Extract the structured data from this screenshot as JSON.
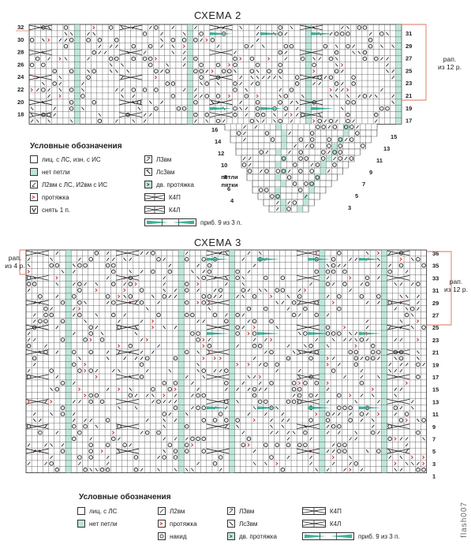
{
  "scheme2": {
    "title": "СХЕМА 2",
    "rows_left": [
      "32",
      "30",
      "28",
      "26",
      "24",
      "22",
      "20",
      "18",
      "16",
      "14",
      "12",
      "10",
      "8",
      "6",
      "4"
    ],
    "rows_right": [
      "31",
      "29",
      "27",
      "25",
      "23",
      "21",
      "19",
      "17",
      "15",
      "13",
      "11",
      "9",
      "7",
      "5",
      "3"
    ],
    "repeat_label": "рап.\nиз 12 р.",
    "loops_label": "петли\nпятки",
    "legend": {
      "title": "Условные обозначения",
      "items": [
        {
          "key": "knit",
          "label": "лиц. с ЛС, изн. с ИС"
        },
        {
          "key": "nostitch",
          "label": "нет петли"
        },
        {
          "key": "l2tog",
          "label": "Л2вм с ЛС, И2вм с ИС"
        },
        {
          "key": "pull",
          "label": "протяжка"
        },
        {
          "key": "slip",
          "label": "снять 1 п."
        },
        {
          "key": "l3tog",
          "label": "Л3вм"
        },
        {
          "key": "lc3tog",
          "label": "Лс3вм"
        },
        {
          "key": "dpull",
          "label": "дв. протяжка"
        },
        {
          "key": "c4r",
          "label": "К4П"
        },
        {
          "key": "c4l",
          "label": "К4Л"
        },
        {
          "key": "inc9",
          "label": "приб. 9 из 3 п."
        }
      ]
    }
  },
  "scheme3": {
    "title": "СХЕМА 3",
    "rows_right": [
      "36",
      "35",
      "33",
      "31",
      "29",
      "27",
      "25",
      "23",
      "21",
      "19",
      "17",
      "15",
      "13",
      "11",
      "9",
      "7",
      "5",
      "3",
      "1"
    ],
    "repeat_left_label": "рап.\nиз 4 р.",
    "repeat_right_label": "рап.\nиз 12 р.",
    "legend": {
      "title": "Условные обозначения",
      "items": [
        {
          "key": "knit",
          "label": "лиц. с ЛС"
        },
        {
          "key": "nostitch",
          "label": "нет петли"
        },
        {
          "key": "yo",
          "label": "накид"
        },
        {
          "key": "l2tog",
          "label": "Л2вм"
        },
        {
          "key": "pull",
          "label": "протяжка"
        },
        {
          "key": "l3tog",
          "label": "Л3вм"
        },
        {
          "key": "lc3tog",
          "label": "Лс3вм"
        },
        {
          "key": "dpull",
          "label": "дв. протяжка"
        },
        {
          "key": "c4r",
          "label": "К4П"
        },
        {
          "key": "c4l",
          "label": "К4Л"
        },
        {
          "key": "inc9",
          "label": "приб. 9 из 3 п."
        }
      ]
    }
  },
  "watermark": "flash007",
  "colors": {
    "grid": "#333333",
    "nostitch": "#bfe6db",
    "accent_teal": "#3bb39a",
    "pull_red": "#cc3333",
    "bracket": "#d9735a"
  }
}
